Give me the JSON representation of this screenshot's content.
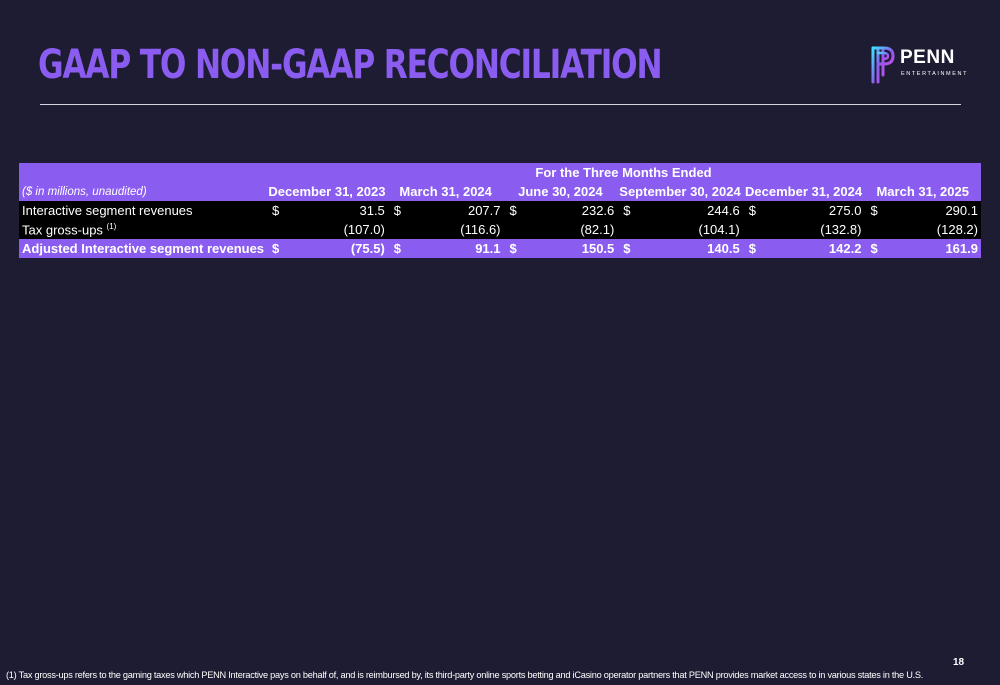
{
  "slide": {
    "title": "GAAP TO NON-GAAP RECONCILIATION",
    "page_number": "18"
  },
  "logo": {
    "word": "PENN",
    "sub": "ENTERTAINMENT",
    "colors": [
      "#3ee0ff",
      "#8a5cf0",
      "#c04de8"
    ]
  },
  "table": {
    "period_header": "For the Three Months Ended",
    "unit_label": "($ in millions, unaudited)",
    "columns": [
      "December 31, 2023",
      "March 31, 2024",
      "June 30, 2024",
      "September 30, 2024",
      "December 31, 2024",
      "March 31, 2025"
    ],
    "rows": [
      {
        "label": "Interactive segment revenues",
        "footnote_ref": "",
        "cells": [
          {
            "cur": "$",
            "val": "31.5"
          },
          {
            "cur": "$",
            "val": "207.7"
          },
          {
            "cur": "$",
            "val": "232.6"
          },
          {
            "cur": "$",
            "val": "244.6"
          },
          {
            "cur": "$",
            "val": "275.0"
          },
          {
            "cur": "$",
            "val": "290.1"
          }
        ]
      },
      {
        "label": "Tax gross-ups",
        "footnote_ref": "(1)",
        "cells": [
          {
            "cur": "",
            "val": "(107.0)"
          },
          {
            "cur": "",
            "val": "(116.6)"
          },
          {
            "cur": "",
            "val": "(82.1)"
          },
          {
            "cur": "",
            "val": "(104.1)"
          },
          {
            "cur": "",
            "val": "(132.8)"
          },
          {
            "cur": "",
            "val": "(128.2)"
          }
        ]
      },
      {
        "label": "Adjusted Interactive segment revenues",
        "footnote_ref": "",
        "cells": [
          {
            "cur": "$",
            "val": "(75.5)"
          },
          {
            "cur": "$",
            "val": "91.1"
          },
          {
            "cur": "$",
            "val": "150.5"
          },
          {
            "cur": "$",
            "val": "140.5"
          },
          {
            "cur": "$",
            "val": "142.2"
          },
          {
            "cur": "$",
            "val": "161.9"
          }
        ]
      }
    ]
  },
  "footnote": "(1) Tax gross-ups refers to the gaming taxes which PENN Interactive pays on behalf of, and is reimbursed by, its third-party online sports betting and iCasino operator partners that PENN provides market access to in various states in the U.S."
}
